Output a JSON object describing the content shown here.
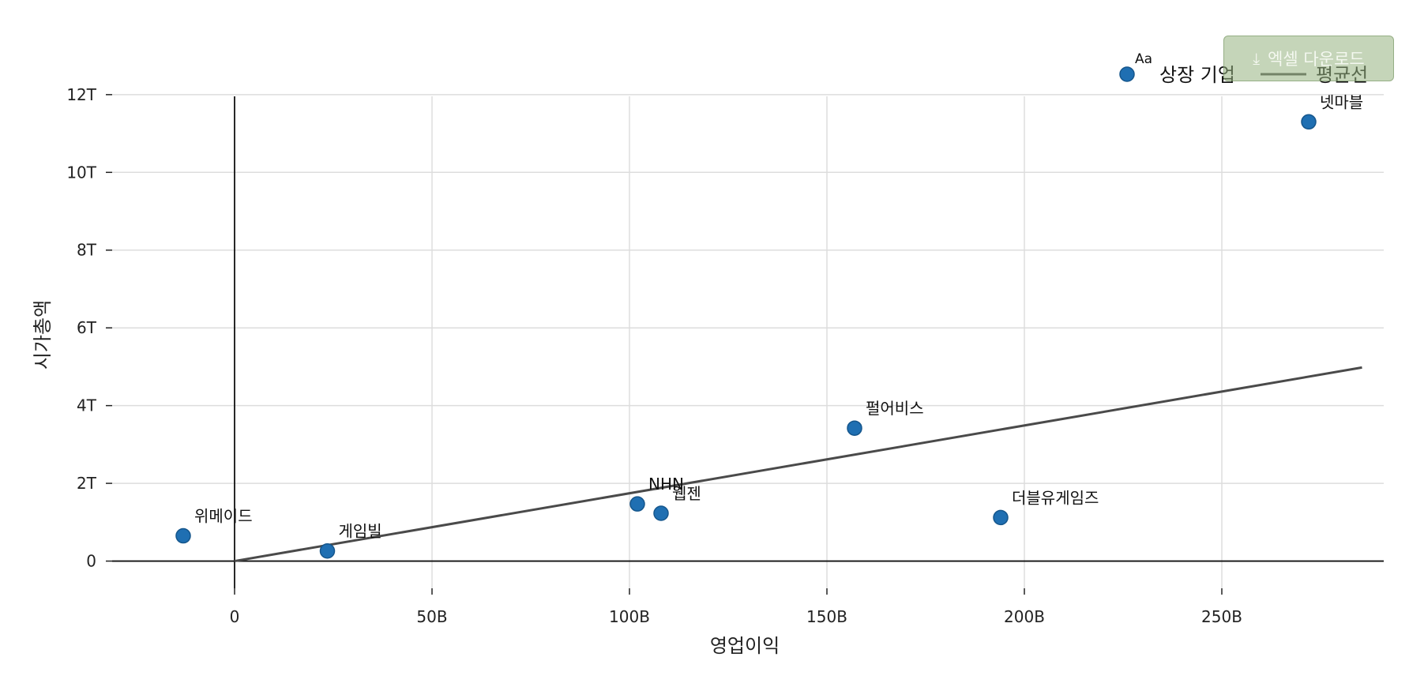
{
  "download_button": {
    "label": "엑셀 다운로드",
    "icon": "download-icon"
  },
  "chart_data": {
    "type": "scatter",
    "xlabel": "영업이익",
    "ylabel": "시가총액",
    "xlim": [
      -31000000000,
      291000000000
    ],
    "ylim": [
      -700000000000,
      12200000000000
    ],
    "x_ticks": [
      {
        "value": 0,
        "label": "0"
      },
      {
        "value": 50000000000,
        "label": "50B"
      },
      {
        "value": 100000000000,
        "label": "100B"
      },
      {
        "value": 150000000000,
        "label": "150B"
      },
      {
        "value": 200000000000,
        "label": "200B"
      },
      {
        "value": 250000000000,
        "label": "250B"
      }
    ],
    "y_ticks": [
      {
        "value": 0,
        "label": "0"
      },
      {
        "value": 2000000000000,
        "label": "2T"
      },
      {
        "value": 4000000000000,
        "label": "4T"
      },
      {
        "value": 6000000000000,
        "label": "6T"
      },
      {
        "value": 8000000000000,
        "label": "8T"
      },
      {
        "value": 10000000000000,
        "label": "10T"
      },
      {
        "value": 12000000000000,
        "label": "12T"
      }
    ],
    "grid": true,
    "legend": {
      "placement": "top-right",
      "aa_mark": "Aa",
      "entries": [
        {
          "label": "상장 기업",
          "kind": "marker",
          "color": "#1f6fb2"
        },
        {
          "label": "평균선",
          "kind": "line",
          "color": "#4a4a4a"
        }
      ]
    },
    "series": [
      {
        "name": "상장 기업",
        "color": "#1f6fb2",
        "points": [
          {
            "label": "위메이드",
            "x": -13000000000,
            "y": 650000000000
          },
          {
            "label": "게임빌",
            "x": 23500000000,
            "y": 260000000000
          },
          {
            "label": "NHN",
            "x": 102000000000,
            "y": 1470000000000
          },
          {
            "label": "웹젠",
            "x": 108000000000,
            "y": 1230000000000
          },
          {
            "label": "펄어비스",
            "x": 157000000000,
            "y": 3420000000000
          },
          {
            "label": "더블유게임즈",
            "x": 194000000000,
            "y": 1120000000000
          },
          {
            "label": "넷마블",
            "x": 272000000000,
            "y": 11300000000000
          }
        ]
      }
    ],
    "reference_line": {
      "name": "평균선",
      "color": "#4a4a4a",
      "from": {
        "x": 0,
        "y": 0
      },
      "to": {
        "x": 285500000000,
        "y": 4980000000000
      }
    }
  }
}
